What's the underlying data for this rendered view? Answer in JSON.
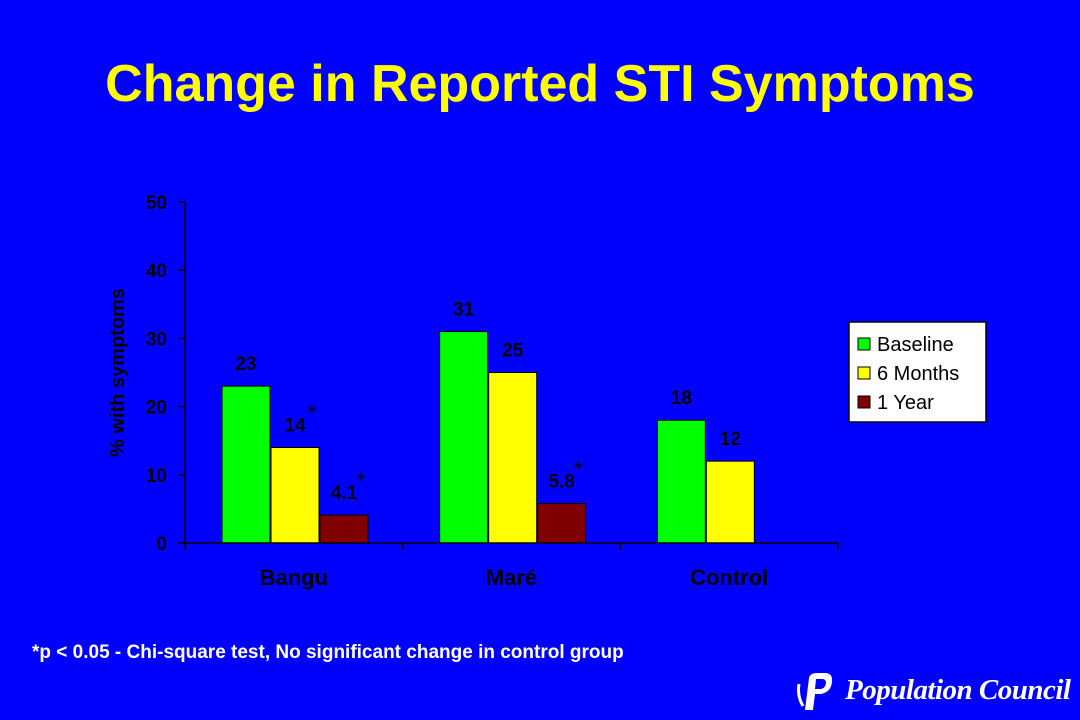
{
  "slide": {
    "title": "Change in Reported STI Symptoms",
    "footnote": "*p < 0.05 - Chi-square test, No significant change in control group",
    "logo_text": "Population Council"
  },
  "colors": {
    "background": "#0000ff",
    "title": "#ffff00",
    "baseline": "#00ff00",
    "six_months": "#ffff00",
    "one_year": "#800000"
  },
  "chart_data": {
    "type": "bar",
    "title": "",
    "xlabel": "",
    "ylabel": "% with symptoms",
    "ylim": [
      0,
      50
    ],
    "yticks": [
      0,
      10,
      20,
      30,
      40,
      50
    ],
    "categories": [
      "Bangu",
      "Maré",
      "Control"
    ],
    "series": [
      {
        "name": "Baseline",
        "values": [
          23,
          31,
          18
        ],
        "labels": [
          "23",
          "31",
          "18"
        ],
        "significant": [
          false,
          false,
          false
        ]
      },
      {
        "name": "6 Months",
        "values": [
          14,
          25,
          12
        ],
        "labels": [
          "14",
          "25",
          "12"
        ],
        "significant": [
          true,
          false,
          false
        ]
      },
      {
        "name": "1 Year",
        "values": [
          4.1,
          5.8,
          null
        ],
        "labels": [
          "4.1",
          "5.8",
          ""
        ],
        "significant": [
          true,
          true,
          false
        ]
      }
    ],
    "significance_marker": "*",
    "legend_position": "right",
    "grid": false
  }
}
